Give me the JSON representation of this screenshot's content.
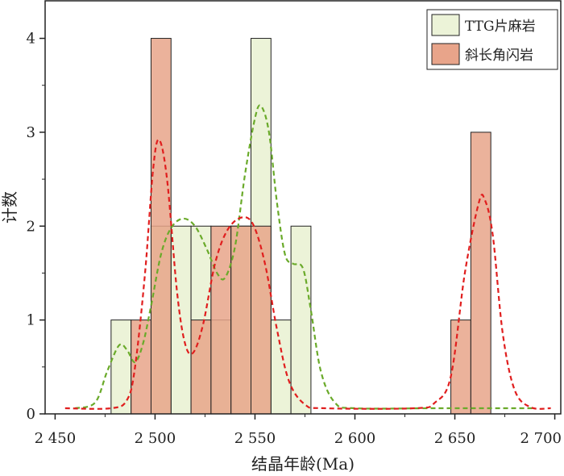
{
  "chart_data": {
    "type": "bar",
    "xlabel": "结晶年龄(Ma)",
    "ylabel": "计数",
    "xlim": [
      2445,
      2703
    ],
    "ylim": [
      0,
      4.4
    ],
    "x_ticks": [
      2450,
      2500,
      2550,
      2600,
      2650,
      2700
    ],
    "x_tick_labels": [
      "2 450",
      "2 500",
      "2 550",
      "2 600",
      "2 650",
      "2 700"
    ],
    "y_ticks": [
      0,
      1,
      2,
      3,
      4
    ],
    "y_tick_labels": [
      "0",
      "1",
      "2",
      "3",
      "4"
    ],
    "grid": false,
    "legend_position": "top-right",
    "bin_width": 10,
    "series": [
      {
        "name": "TTG片麻岩",
        "fill": "#ecf3d8",
        "curve_color": "#6aaa2a",
        "bins": [
          {
            "start": 2478,
            "count": 1
          },
          {
            "start": 2488,
            "count": 0
          },
          {
            "start": 2498,
            "count": 2
          },
          {
            "start": 2508,
            "count": 2
          },
          {
            "start": 2518,
            "count": 2
          },
          {
            "start": 2528,
            "count": 1
          },
          {
            "start": 2538,
            "count": 2
          },
          {
            "start": 2548,
            "count": 4
          },
          {
            "start": 2558,
            "count": 1
          },
          {
            "start": 2568,
            "count": 2
          }
        ],
        "curve": [
          [
            2460,
            0.06
          ],
          [
            2470,
            0.12
          ],
          [
            2476,
            0.45
          ],
          [
            2482,
            0.73
          ],
          [
            2486,
            0.68
          ],
          [
            2490,
            0.55
          ],
          [
            2494,
            0.75
          ],
          [
            2498,
            1.15
          ],
          [
            2503,
            1.7
          ],
          [
            2508,
            1.98
          ],
          [
            2514,
            2.08
          ],
          [
            2520,
            2.0
          ],
          [
            2526,
            1.75
          ],
          [
            2531,
            1.5
          ],
          [
            2535,
            1.45
          ],
          [
            2540,
            1.78
          ],
          [
            2545,
            2.55
          ],
          [
            2550,
            3.15
          ],
          [
            2553,
            3.28
          ],
          [
            2557,
            3.0
          ],
          [
            2561,
            2.25
          ],
          [
            2565,
            1.7
          ],
          [
            2569,
            1.6
          ],
          [
            2574,
            1.55
          ],
          [
            2578,
            1.1
          ],
          [
            2583,
            0.45
          ],
          [
            2590,
            0.12
          ],
          [
            2600,
            0.06
          ],
          [
            2640,
            0.06
          ],
          [
            2690,
            0.06
          ]
        ]
      },
      {
        "name": "斜长角闪岩",
        "fill": "#e8a48a",
        "curve_color": "#e01e1e",
        "bins": [
          {
            "start": 2488,
            "count": 1
          },
          {
            "start": 2498,
            "count": 4
          },
          {
            "start": 2518,
            "count": 1
          },
          {
            "start": 2528,
            "count": 2
          },
          {
            "start": 2538,
            "count": 2
          },
          {
            "start": 2548,
            "count": 2
          },
          {
            "start": 2648,
            "count": 1
          },
          {
            "start": 2658,
            "count": 3
          }
        ],
        "curve": [
          [
            2455,
            0.06
          ],
          [
            2478,
            0.06
          ],
          [
            2486,
            0.15
          ],
          [
            2490,
            0.5
          ],
          [
            2495,
            1.5
          ],
          [
            2499,
            2.6
          ],
          [
            2502,
            2.92
          ],
          [
            2506,
            2.5
          ],
          [
            2511,
            1.3
          ],
          [
            2515,
            0.75
          ],
          [
            2519,
            0.65
          ],
          [
            2524,
            0.95
          ],
          [
            2530,
            1.6
          ],
          [
            2536,
            1.95
          ],
          [
            2543,
            2.09
          ],
          [
            2549,
            2.02
          ],
          [
            2555,
            1.6
          ],
          [
            2561,
            0.9
          ],
          [
            2567,
            0.35
          ],
          [
            2575,
            0.1
          ],
          [
            2585,
            0.06
          ],
          [
            2630,
            0.06
          ],
          [
            2640,
            0.12
          ],
          [
            2648,
            0.4
          ],
          [
            2655,
            1.5
          ],
          [
            2662,
            2.25
          ],
          [
            2665,
            2.28
          ],
          [
            2669,
            1.9
          ],
          [
            2674,
            0.85
          ],
          [
            2680,
            0.25
          ],
          [
            2688,
            0.07
          ],
          [
            2698,
            0.06
          ]
        ]
      }
    ]
  }
}
